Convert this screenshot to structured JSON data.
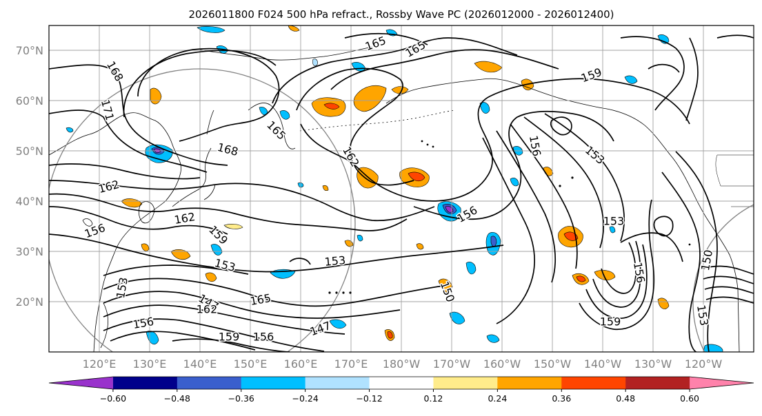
{
  "title": "2026011800 F024 500 hPa refract., Rossby Wave PC (2026012000 - 2026012400)",
  "lat_labels": [
    "70°N",
    "60°N",
    "50°N",
    "40°N",
    "30°N",
    "20°N"
  ],
  "lon_labels": [
    "120°E",
    "130°E",
    "140°E",
    "150°E",
    "160°E",
    "170°E",
    "180°W",
    "170°W",
    "160°W",
    "150°W",
    "140°W",
    "130°W",
    "120°W"
  ],
  "colorbar": {
    "colors": [
      "#9932cc",
      "#00008b",
      "#3a5fcd",
      "#00bfff",
      "#b0e2ff",
      "#ffffff",
      "#ffec8b",
      "#ffa500",
      "#ff4500",
      "#b22222",
      "#ff82ab"
    ],
    "ticks": [
      "−0.60",
      "−0.48",
      "−0.36",
      "−0.24",
      "−0.12",
      "0.12",
      "0.24",
      "0.36",
      "0.48",
      "0.60"
    ]
  },
  "contour_labels": [
    "168",
    "171",
    "162",
    "156",
    "153",
    "156",
    "162",
    "159",
    "153",
    "147",
    "165",
    "165",
    "168",
    "162",
    "165",
    "165",
    "153",
    "156",
    "147",
    "150",
    "159",
    "156",
    "153",
    "153",
    "159",
    "156",
    "150",
    "153",
    "156",
    "162",
    "159"
  ]
}
